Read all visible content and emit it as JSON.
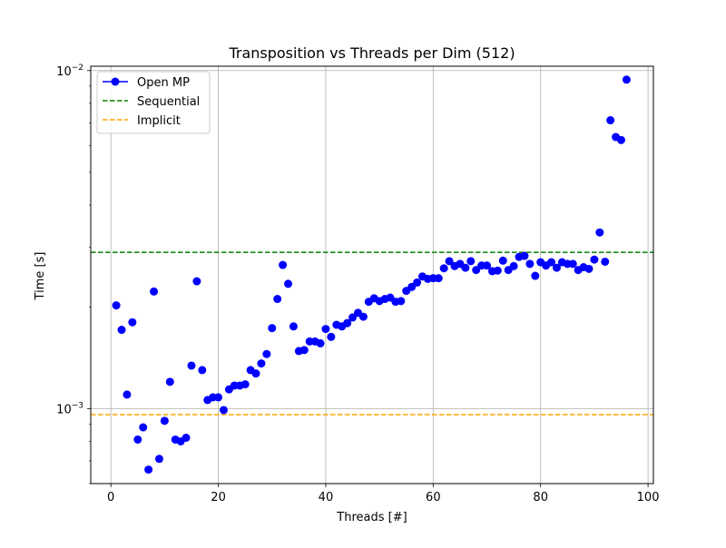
{
  "chart_data": {
    "type": "scatter",
    "title": "Transposition vs Threads per Dim (512)",
    "xlabel": "Threads [#]",
    "ylabel": "Time [s]",
    "xlim": [
      -3.75,
      101
    ],
    "ylim": [
      0.0006,
      0.0103
    ],
    "yscale": "log",
    "grid": true,
    "legend_position": "upper-left",
    "x_ticks": [
      {
        "value": 0,
        "label": "0"
      },
      {
        "value": 20,
        "label": "20"
      },
      {
        "value": 40,
        "label": "40"
      },
      {
        "value": 60,
        "label": "60"
      },
      {
        "value": 80,
        "label": "80"
      },
      {
        "value": 100,
        "label": "100"
      }
    ],
    "y_ticks_major": [
      {
        "value": 0.001,
        "base": "10",
        "exp": "−3"
      },
      {
        "value": 0.01,
        "base": "10",
        "exp": "−2"
      }
    ],
    "y_ticks_minor": [
      0.0006,
      0.0007,
      0.0008,
      0.0009,
      0.002,
      0.003,
      0.004,
      0.005,
      0.006,
      0.007,
      0.008,
      0.009
    ],
    "series": [
      {
        "name": "Open MP",
        "kind": "line-marker",
        "color": "#0000ff",
        "points": [
          [
            1,
            0.00202
          ],
          [
            2,
            0.00171
          ],
          [
            3,
            0.0011
          ],
          [
            4,
            0.0018
          ],
          [
            5,
            0.00081
          ],
          [
            6,
            0.00088
          ],
          [
            7,
            0.00066
          ],
          [
            8,
            0.00222
          ],
          [
            9,
            0.00071
          ],
          [
            10,
            0.00092
          ],
          [
            11,
            0.0012
          ],
          [
            12,
            0.00081
          ],
          [
            13,
            0.0008
          ],
          [
            14,
            0.00082
          ],
          [
            15,
            0.00134
          ],
          [
            16,
            0.00238
          ],
          [
            17,
            0.0013
          ],
          [
            18,
            0.00106
          ],
          [
            19,
            0.00108
          ],
          [
            20,
            0.00108
          ],
          [
            21,
            0.00099
          ],
          [
            22,
            0.00114
          ],
          [
            23,
            0.00117
          ],
          [
            24,
            0.00117
          ],
          [
            25,
            0.00118
          ],
          [
            26,
            0.0013
          ],
          [
            27,
            0.00127
          ],
          [
            28,
            0.00136
          ],
          [
            29,
            0.00145
          ],
          [
            30,
            0.00173
          ],
          [
            31,
            0.00211
          ],
          [
            32,
            0.00266
          ],
          [
            33,
            0.00234
          ],
          [
            34,
            0.00175
          ],
          [
            35,
            0.00148
          ],
          [
            36,
            0.00149
          ],
          [
            37,
            0.00158
          ],
          [
            38,
            0.00158
          ],
          [
            39,
            0.00156
          ],
          [
            40,
            0.00172
          ],
          [
            41,
            0.00163
          ],
          [
            42,
            0.00177
          ],
          [
            43,
            0.00175
          ],
          [
            44,
            0.00179
          ],
          [
            45,
            0.00186
          ],
          [
            46,
            0.00192
          ],
          [
            47,
            0.00187
          ],
          [
            48,
            0.00207
          ],
          [
            49,
            0.00212
          ],
          [
            50,
            0.00208
          ],
          [
            51,
            0.00211
          ],
          [
            52,
            0.00213
          ],
          [
            53,
            0.00207
          ],
          [
            54,
            0.00208
          ],
          [
            55,
            0.00223
          ],
          [
            56,
            0.00229
          ],
          [
            57,
            0.00236
          ],
          [
            58,
            0.00246
          ],
          [
            59,
            0.00242
          ],
          [
            60,
            0.00243
          ],
          [
            61,
            0.00243
          ],
          [
            62,
            0.0026
          ],
          [
            63,
            0.00273
          ],
          [
            64,
            0.00264
          ],
          [
            65,
            0.00268
          ],
          [
            66,
            0.00261
          ],
          [
            67,
            0.00273
          ],
          [
            68,
            0.00257
          ],
          [
            69,
            0.00265
          ],
          [
            70,
            0.00265
          ],
          [
            71,
            0.00255
          ],
          [
            72,
            0.00256
          ],
          [
            73,
            0.00274
          ],
          [
            74,
            0.00257
          ],
          [
            75,
            0.00264
          ],
          [
            76,
            0.00281
          ],
          [
            77,
            0.00283
          ],
          [
            78,
            0.00268
          ],
          [
            79,
            0.00247
          ],
          [
            80,
            0.00271
          ],
          [
            81,
            0.00265
          ],
          [
            82,
            0.00271
          ],
          [
            83,
            0.00261
          ],
          [
            84,
            0.00271
          ],
          [
            85,
            0.00268
          ],
          [
            86,
            0.00268
          ],
          [
            87,
            0.00257
          ],
          [
            88,
            0.00262
          ],
          [
            89,
            0.00259
          ],
          [
            90,
            0.00276
          ],
          [
            91,
            0.00332
          ],
          [
            92,
            0.00272
          ],
          [
            93,
            0.00713
          ],
          [
            94,
            0.00636
          ],
          [
            95,
            0.00623
          ],
          [
            96,
            0.0094
          ]
        ]
      },
      {
        "name": "Sequential",
        "kind": "hline-dashed",
        "color": "#008000",
        "value": 0.0029
      },
      {
        "name": "Implicit",
        "kind": "hline-dashed",
        "color": "#ffa500",
        "value": 0.00096
      }
    ]
  }
}
